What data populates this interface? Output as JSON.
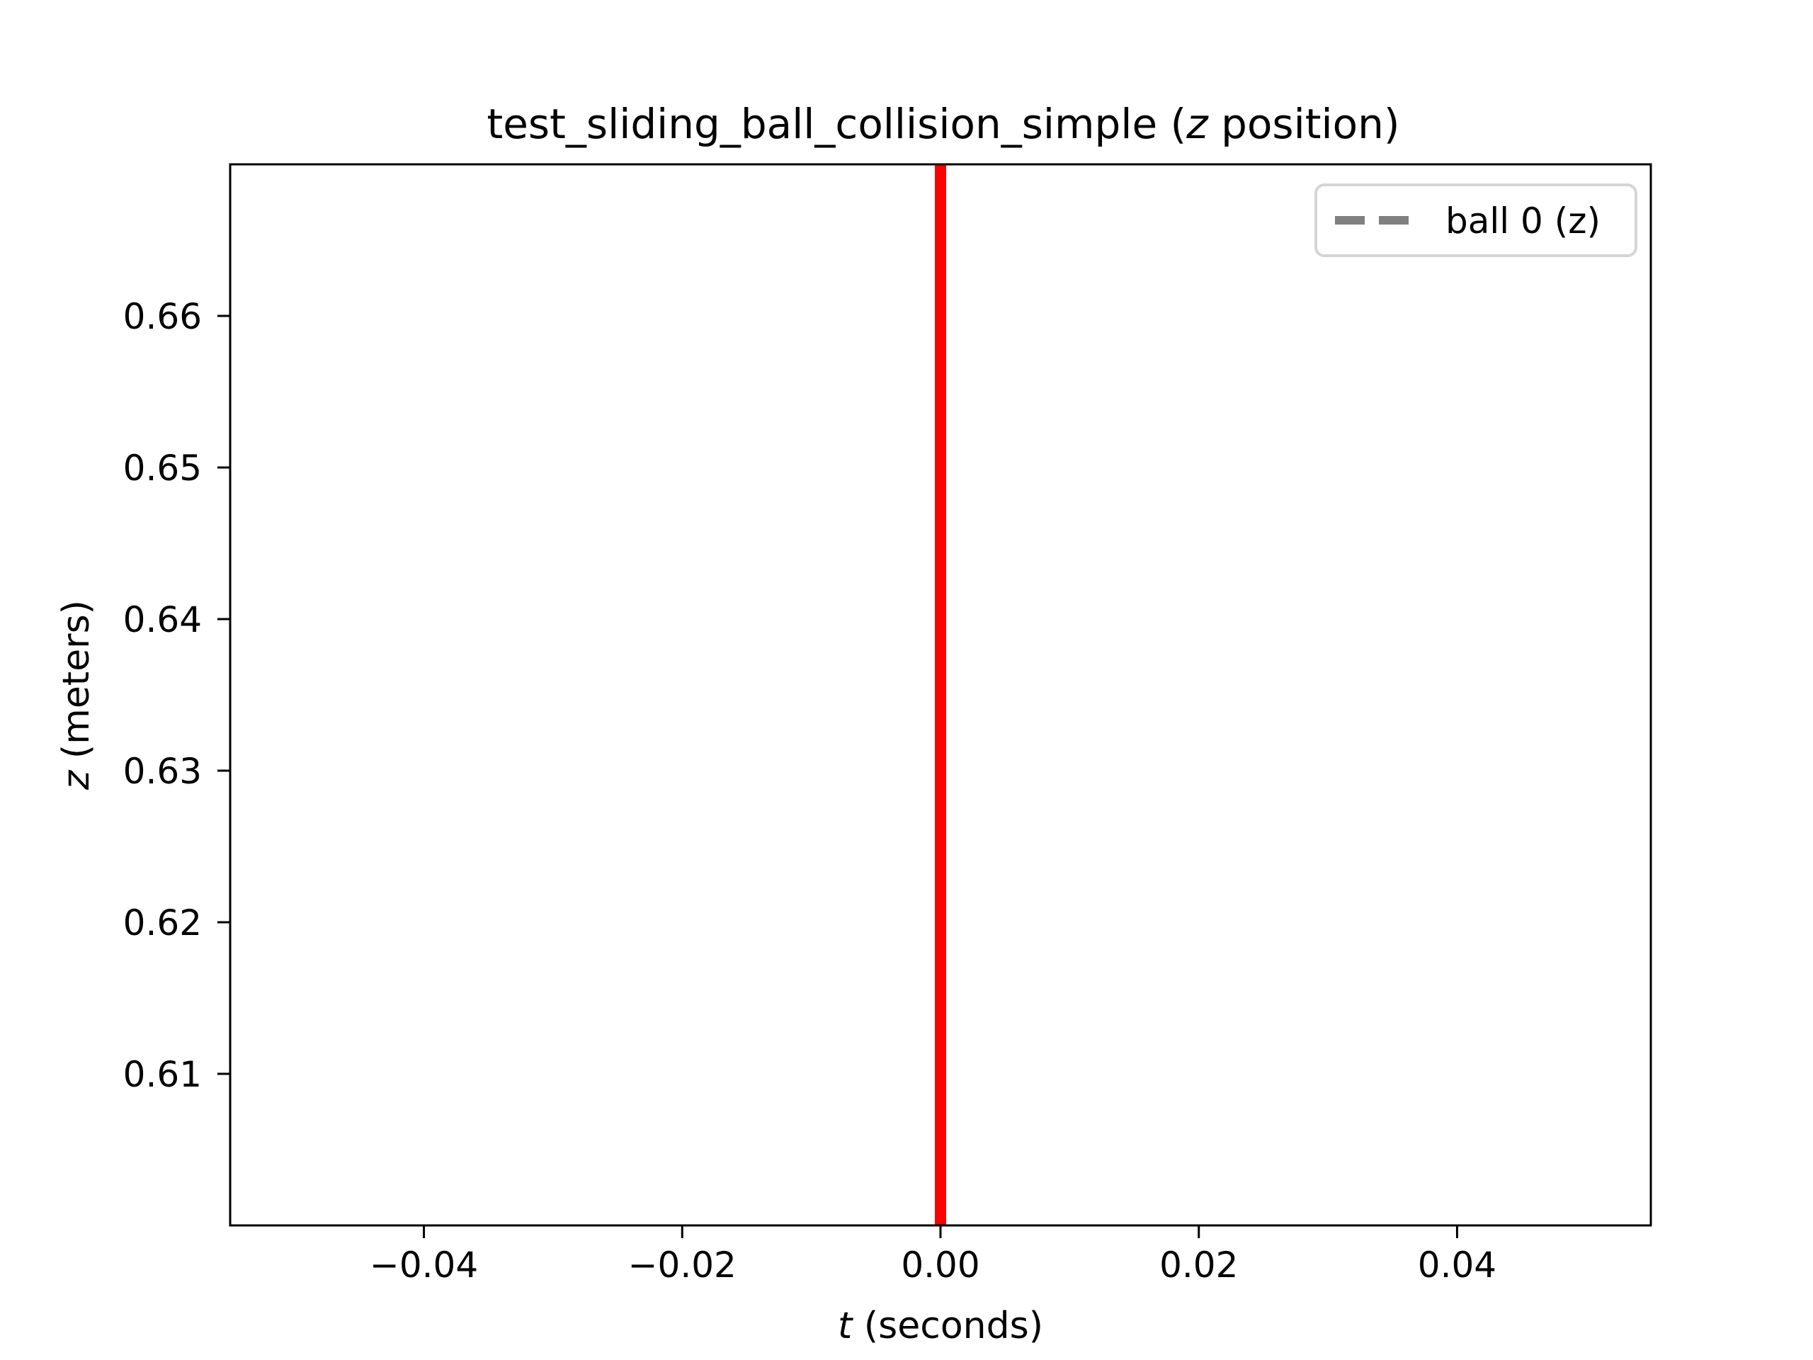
{
  "chart_data": {
    "type": "line",
    "title_parts": [
      "test_sliding_ball_collision_simple (",
      "z",
      " position)"
    ],
    "xlabel_parts": [
      "t",
      " (seconds)"
    ],
    "ylabel_parts": [
      "z",
      " (meters)"
    ],
    "xlim": [
      -0.055,
      0.055
    ],
    "ylim": [
      0.6,
      0.67
    ],
    "xticks": [
      -0.04,
      -0.02,
      0.0,
      0.02,
      0.04
    ],
    "xtick_labels": [
      "−0.04",
      "−0.02",
      "0.00",
      "0.02",
      "0.04"
    ],
    "yticks": [
      0.61,
      0.62,
      0.63,
      0.64,
      0.65,
      0.66
    ],
    "ytick_labels": [
      "0.61",
      "0.62",
      "0.63",
      "0.64",
      "0.65",
      "0.66"
    ],
    "grid": false,
    "legend_position": "upper right",
    "series": [
      {
        "name": "ball 0 (z)",
        "style": "dashed",
        "color": "#808080",
        "x": [],
        "y": []
      }
    ],
    "vlines": [
      {
        "x": 0.0,
        "color": "#ff0000"
      }
    ]
  }
}
